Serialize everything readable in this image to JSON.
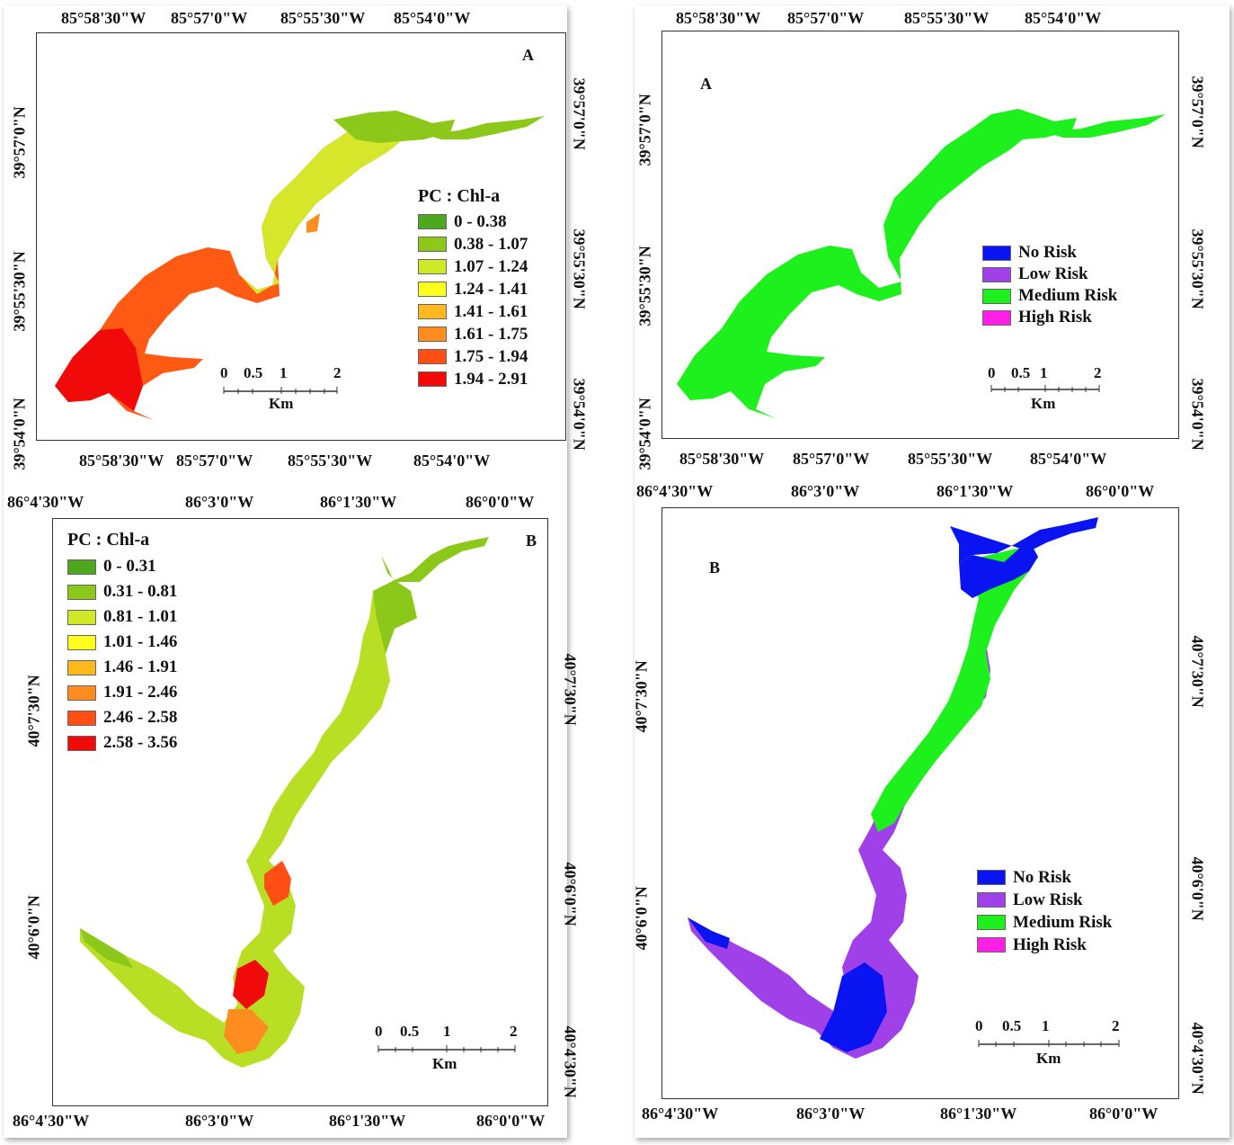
{
  "maps": {
    "top_left": {
      "panel_label": "A",
      "ticks_top": [
        "85°58'30\"W",
        "85°57'0\"W",
        "85°55'30\"W",
        "85°54'0\"W"
      ],
      "ticks_bottom": [
        "85°58'30\"W",
        "85°57'0\"W",
        "85°55'30\"W",
        "85°54'0\"W"
      ],
      "ticks_left": [
        "39°57'0\"N",
        "39°55'30\"N",
        "39°54'0\"N"
      ],
      "ticks_right": [
        "39°57'0\"N",
        "39°55'30\"N",
        "39°54'0\"N"
      ],
      "legend_title": "PC : Chl-a",
      "legend": [
        {
          "label": "0 - 0.38",
          "color": "#4da81e"
        },
        {
          "label": "0.38 - 1.07",
          "color": "#8cc81a"
        },
        {
          "label": "1.07 - 1.24",
          "color": "#cfe827"
        },
        {
          "label": "1.24 - 1.41",
          "color": "#ffff1e"
        },
        {
          "label": "1.41 - 1.61",
          "color": "#ffb81e"
        },
        {
          "label": "1.61 - 1.75",
          "color": "#ff8c1e"
        },
        {
          "label": "1.75 - 1.94",
          "color": "#ff4f14"
        },
        {
          "label": "1.94 - 2.91",
          "color": "#f00a0a"
        }
      ],
      "scale": {
        "labels": [
          "0",
          "0.5",
          "1",
          "2"
        ],
        "unit": "Km"
      }
    },
    "bottom_left": {
      "panel_label": "B",
      "ticks_top": [
        "86°4'30\"W",
        "86°3'0\"W",
        "86°1'30\"W",
        "86°0'0\"W"
      ],
      "ticks_bottom": [
        "86°4'30\"W",
        "86°3'0\"W",
        "86°1'30\"W",
        "86°0'0\"W"
      ],
      "ticks_left": [
        "40°7'30\"N",
        "40°6'0\"N"
      ],
      "ticks_right": [
        "40°7'30\"N",
        "40°6'0\"N",
        "40°4'30\"N"
      ],
      "legend_title": "PC : Chl-a",
      "legend": [
        {
          "label": "0 - 0.31",
          "color": "#4da81e"
        },
        {
          "label": "0.31 - 0.81",
          "color": "#8cc81a"
        },
        {
          "label": "0.81 - 1.01",
          "color": "#cfe827"
        },
        {
          "label": "1.01 - 1.46",
          "color": "#ffff1e"
        },
        {
          "label": "1.46 - 1.91",
          "color": "#ffb81e"
        },
        {
          "label": "1.91 - 2.46",
          "color": "#ff8c1e"
        },
        {
          "label": "2.46 - 2.58",
          "color": "#ff4f14"
        },
        {
          "label": "2.58 - 3.56",
          "color": "#f00a0a"
        }
      ],
      "scale": {
        "labels": [
          "0",
          "0.5",
          "1",
          "2"
        ],
        "unit": "Km"
      }
    },
    "top_right": {
      "panel_label": "A",
      "ticks_top": [
        "85°58'30\"W",
        "85°57'0\"W",
        "85°55'30\"W",
        "85°54'0\"W"
      ],
      "ticks_bottom": [
        "85°58'30\"W",
        "85°57'0\"W",
        "85°55'30\"W",
        "85°54'0\"W"
      ],
      "ticks_left": [
        "39°57'0\"N",
        "39°55'30\"N",
        "39°54'0\"N"
      ],
      "ticks_right": [
        "39°57'0\"N",
        "39°55'30\"N",
        "39°54'0\"N"
      ],
      "legend": [
        {
          "label": "No Risk",
          "color": "#0a14f0"
        },
        {
          "label": "Low Risk",
          "color": "#a040e8"
        },
        {
          "label": "Medium Risk",
          "color": "#1ef01e"
        },
        {
          "label": "High Risk",
          "color": "#ff1ee6"
        }
      ],
      "scale": {
        "labels": [
          "0",
          "0.5",
          "1",
          "2"
        ],
        "unit": "Km"
      }
    },
    "bottom_right": {
      "panel_label": "B",
      "ticks_top": [
        "86°4'30\"W",
        "86°3'0\"W",
        "86°1'30\"W",
        "86°0'0\"W"
      ],
      "ticks_bottom": [
        "86°4'30\"W",
        "86°3'0\"W",
        "86°1'30\"W",
        "86°0'0\"W"
      ],
      "ticks_left": [
        "40°7'30\"N",
        "40°6'0\"N"
      ],
      "ticks_right": [
        "40°7'30\"N",
        "40°6'0\"N",
        "40°4'30\"N"
      ],
      "legend": [
        {
          "label": "No Risk",
          "color": "#0a14f0"
        },
        {
          "label": "Low Risk",
          "color": "#a040e8"
        },
        {
          "label": "Medium Risk",
          "color": "#1ef01e"
        },
        {
          "label": "High Risk",
          "color": "#ff1ee6"
        }
      ],
      "scale": {
        "labels": [
          "0",
          "0.5",
          "1",
          "2"
        ],
        "unit": "Km"
      }
    }
  }
}
